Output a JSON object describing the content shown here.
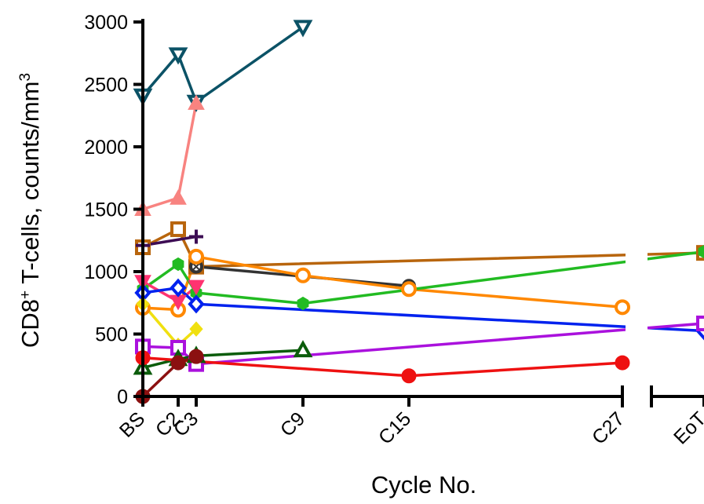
{
  "chart_data": {
    "type": "line",
    "title": "",
    "xlabel": "Cycle No.",
    "ylabel": {
      "prefix": "CD8",
      "sup1": "+",
      "middle": " T-cells, counts/mm",
      "sup2": "3"
    },
    "ylim": [
      0,
      3000
    ],
    "yticks": [
      "0",
      "500",
      "1000",
      "1500",
      "2000",
      "2500",
      "3000"
    ],
    "categories": [
      "BS",
      "C2",
      "C3",
      "C9",
      "C15",
      "C27",
      "EoT"
    ],
    "axis_break": "between C27 and EoT",
    "grid": false,
    "legend": "none",
    "series": [
      {
        "color": "#0b5266",
        "marker": "tri-down-open",
        "x": [
          "BS",
          "C2",
          "C3",
          "C9"
        ],
        "values": [
          2410,
          2740,
          2360,
          2960
        ]
      },
      {
        "color": "#f88380",
        "marker": "tri-up",
        "x": [
          "BS",
          "C2",
          "C3"
        ],
        "values": [
          1500,
          1590,
          2350
        ]
      },
      {
        "color": "#b8650d",
        "marker": "square-open",
        "x": [
          "BS",
          "C2",
          "C3",
          "EoT"
        ],
        "values": [
          1195,
          1340,
          1040,
          1150
        ]
      },
      {
        "color": "#3d0d54",
        "marker": "plus",
        "x": [
          "BS",
          "C3"
        ],
        "values": [
          1210,
          1280
        ]
      },
      {
        "color": "#333333",
        "marker": "cross-circle",
        "x": [
          "C3",
          "C15"
        ],
        "values": [
          1040,
          885
        ]
      },
      {
        "color": "#ff8800",
        "marker": "circle-open",
        "x": [
          "BS",
          "C2",
          "C3",
          "C9",
          "C15",
          "C27"
        ],
        "values": [
          710,
          695,
          1120,
          970,
          860,
          715
        ]
      },
      {
        "color": "#22bb22",
        "marker": "hexagon",
        "x": [
          "BS",
          "C2",
          "C3",
          "C9",
          "EoT"
        ],
        "values": [
          860,
          1060,
          830,
          745,
          1160
        ]
      },
      {
        "color": "#ff3370",
        "marker": "tri-down",
        "x": [
          "BS",
          "C2",
          "C3"
        ],
        "values": [
          920,
          760,
          880
        ]
      },
      {
        "color": "#0022ee",
        "marker": "diamond-open",
        "x": [
          "BS",
          "C2",
          "C3",
          "EoT"
        ],
        "values": [
          830,
          870,
          740,
          525
        ]
      },
      {
        "color": "#f0e010",
        "marker": "diamond",
        "x": [
          "BS",
          "C2",
          "C3"
        ],
        "values": [
          740,
          410,
          540
        ]
      },
      {
        "color": "#aa11dd",
        "marker": "square-open",
        "x": [
          "BS",
          "C2",
          "C3",
          "EoT"
        ],
        "values": [
          400,
          390,
          260,
          585
        ]
      },
      {
        "color": "#0b5c0b",
        "marker": "tri-up-open",
        "x": [
          "BS",
          "C2",
          "C3",
          "C9"
        ],
        "values": [
          230,
          300,
          325,
          370
        ]
      },
      {
        "color": "#ee1111",
        "marker": "circle",
        "x": [
          "BS",
          "C15",
          "C27"
        ],
        "values": [
          310,
          165,
          270
        ]
      },
      {
        "color": "#8b1010",
        "marker": "circle",
        "x": [
          "BS",
          "C2",
          "C3"
        ],
        "values": [
          0,
          270,
          320
        ]
      }
    ]
  }
}
